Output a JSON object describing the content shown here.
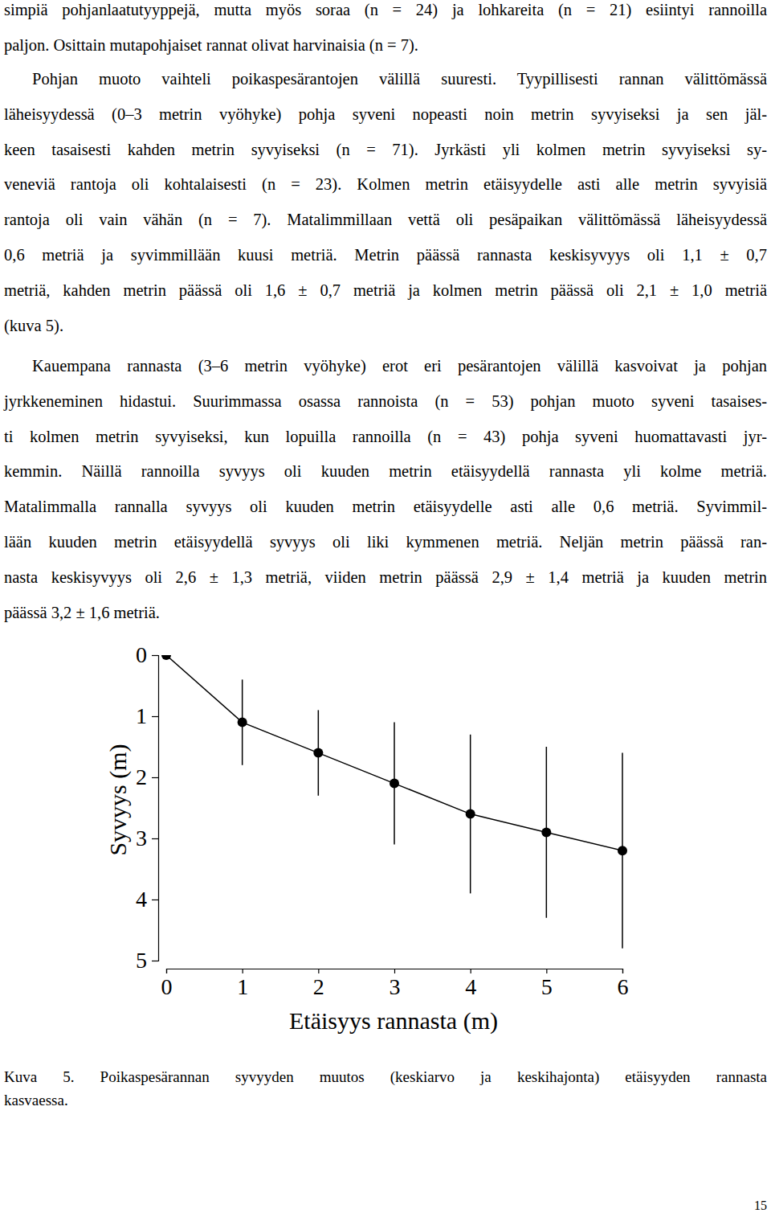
{
  "paragraphs": [
    [
      "simpiä pohjanlaatutyyppejä, mutta myös soraa (n = 24) ja lohkareita (n = 21) esiintyi rannoilla",
      "paljon. Osittain mutapohjaiset rannat olivat harvinaisia (n = 7)."
    ],
    [
      "Pohjan muoto vaihteli poikaspesärantojen välillä suuresti. Tyypillisesti rannan välittömässä",
      "läheisyydessä (0–3 metrin vyöhyke) pohja syveni nopeasti noin metrin syvyiseksi ja sen jäl-",
      "keen tasaisesti kahden metrin syvyiseksi (n = 71). Jyrkästi yli kolmen metrin syvyiseksi sy-",
      "veneviä rantoja oli kohtalaisesti (n = 23). Kolmen metrin etäisyydelle asti alle metrin syvyisiä",
      "rantoja oli vain vähän (n = 7). Matalimmillaan vettä oli pesäpaikan välittömässä läheisyydessä",
      "0,6 metriä ja syvimmillään kuusi metriä. Metrin päässä rannasta keskisyvyys oli 1,1 ± 0,7",
      "metriä, kahden metrin päässä oli 1,6 ± 0,7 metriä ja kolmen metrin päässä oli 2,1 ± 1,0 metriä",
      "(kuva 5)."
    ],
    [
      "Kauempana rannasta (3–6 metrin vyöhyke) erot eri pesärantojen välillä kasvoivat ja pohjan",
      "jyrkkeneminen hidastui. Suurimmassa osassa rannoista (n = 53) pohjan muoto syveni tasaises-",
      "ti kolmen metrin syvyiseksi, kun lopuilla rannoilla (n = 43) pohja syveni huomattavasti jyr-",
      "kemmin. Näillä rannoilla syvyys oli kuuden metrin etäisyydellä rannasta yli kolme metriä.",
      "Matalimmalla rannalla syvyys oli kuuden metrin etäisyydelle asti alle 0,6 metriä. Syvimmil-",
      "lään kuuden metrin etäisyydellä syvyys oli liki kymmenen metriä. Neljän metrin päässä ran-",
      "nasta keskisyvyys oli 2,6 ± 1,3 metriä, viiden metrin päässä 2,9 ± 1,4 metriä ja kuuden metrin",
      "päässä 3,2 ± 1,6 metriä."
    ]
  ],
  "chart_data": {
    "type": "line",
    "x_label": "Etäisyys rannasta (m)",
    "y_label": "Syvyys (m)",
    "x": [
      0,
      1,
      2,
      3,
      4,
      5,
      6
    ],
    "values": [
      0,
      1.1,
      1.6,
      2.1,
      2.6,
      2.9,
      3.2
    ],
    "errors": [
      0,
      0.7,
      0.7,
      1.0,
      1.3,
      1.4,
      1.6
    ],
    "xlim": [
      0,
      6
    ],
    "ylim": [
      5,
      0
    ],
    "xticks": [
      0,
      1,
      2,
      3,
      4,
      5,
      6
    ],
    "yticks": [
      0,
      1,
      2,
      3,
      4,
      5
    ],
    "color": "#000000",
    "marker": "circle"
  },
  "caption": [
    "Kuva 5. Poikaspesärannan syvyyden muutos (keskiarvo ja keskihajonta) etäisyyden rannasta",
    "kasvaessa."
  ],
  "page_number": "15"
}
